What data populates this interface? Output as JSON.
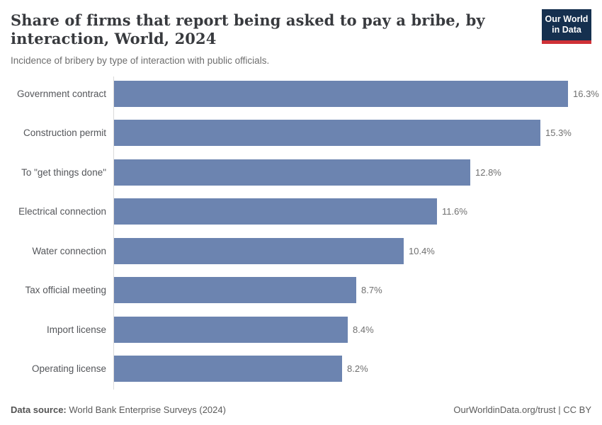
{
  "header": {
    "title": "Share of firms that report being asked to pay a bribe, by interaction, World, 2024",
    "subtitle": "Incidence of bribery by type of interaction with public officials."
  },
  "logo": {
    "line1": "Our World",
    "line2": "in Data",
    "bg_color": "#15304f",
    "accent_color": "#cf3137"
  },
  "chart_data": {
    "type": "bar",
    "orientation": "horizontal",
    "title": "Share of firms that report being asked to pay a bribe, by interaction, World, 2024",
    "subtitle": "Incidence of bribery by type of interaction with public officials.",
    "categories": [
      "Government contract",
      "Construction permit",
      "To \"get things done\"",
      "Electrical connection",
      "Water connection",
      "Tax official meeting",
      "Import license",
      "Operating license"
    ],
    "values": [
      16.3,
      15.3,
      12.8,
      11.6,
      10.4,
      8.7,
      8.4,
      8.2
    ],
    "value_labels": [
      "16.3%",
      "15.3%",
      "12.8%",
      "11.6%",
      "10.4%",
      "8.7%",
      "8.4%",
      "8.2%"
    ],
    "unit": "%",
    "xlim": [
      0,
      16.3
    ],
    "bar_color": "#6c84b0",
    "grid": false,
    "legend": false
  },
  "footer": {
    "source_label": "Data source:",
    "source_value": " World Bank Enterprise Surveys (2024)",
    "credit": "OurWorldinData.org/trust | CC BY"
  }
}
